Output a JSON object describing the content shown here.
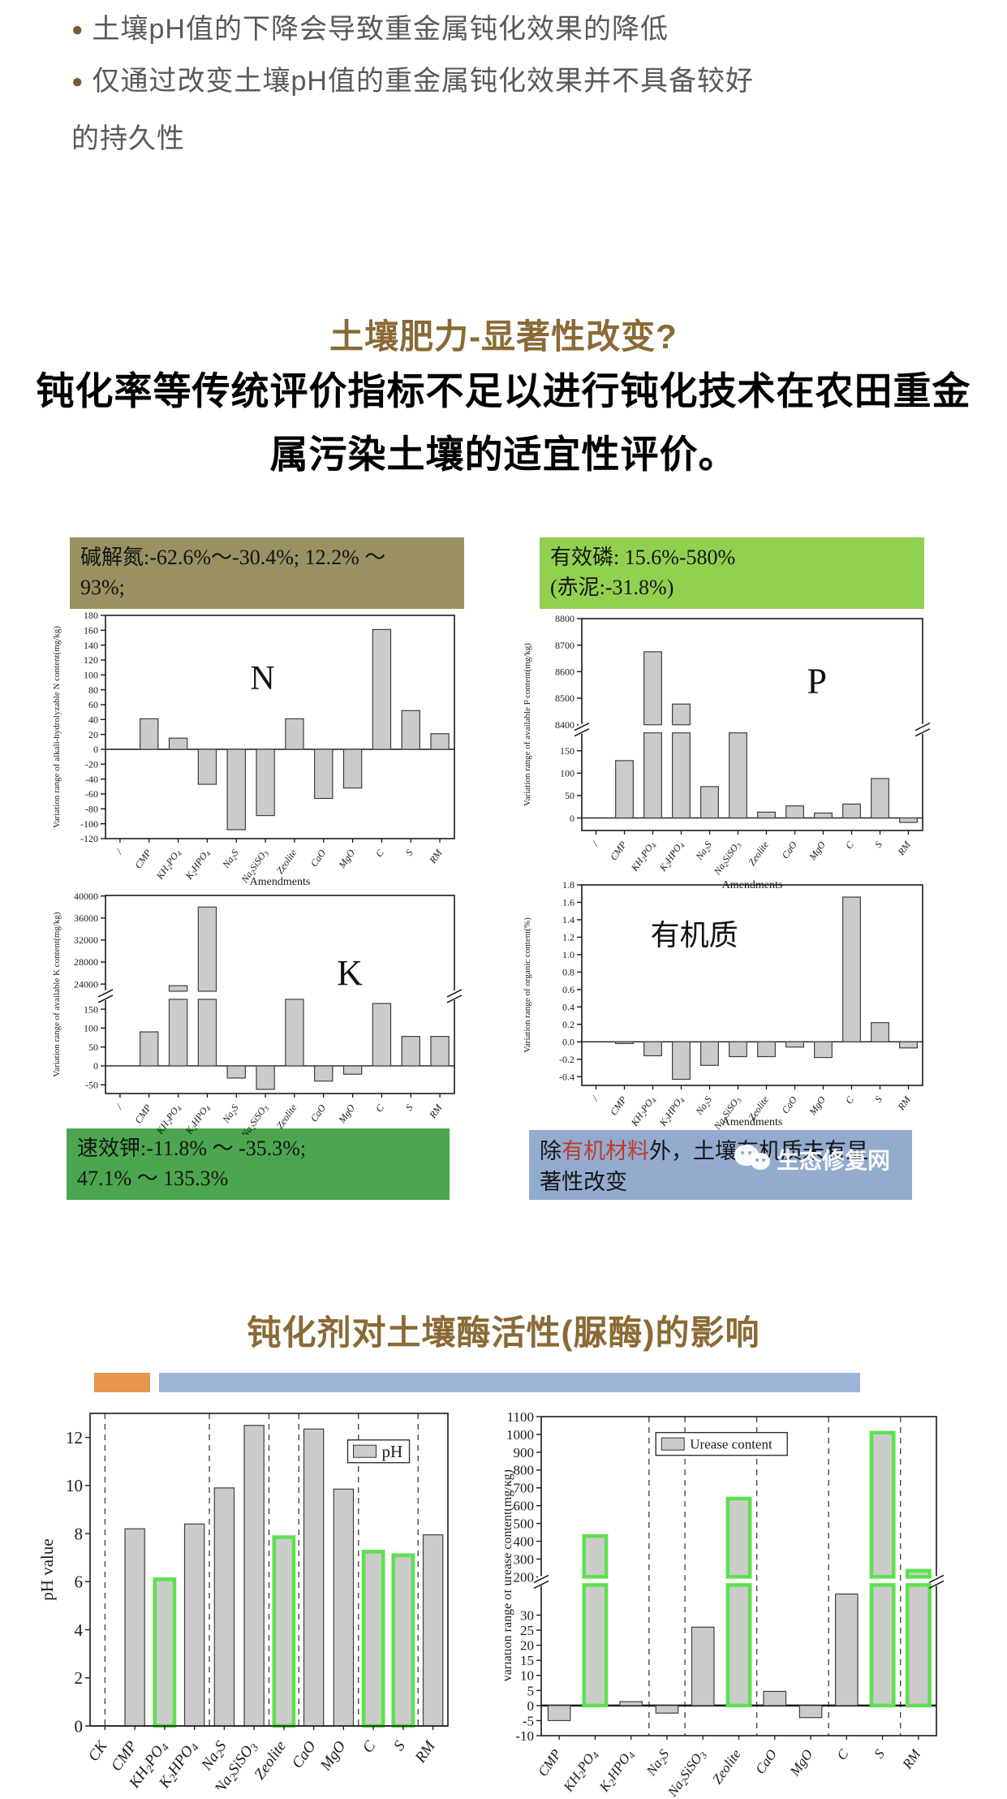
{
  "bullets": {
    "item1": "土壤pH值的下降会导致重金属钝化效果的降低",
    "item2_line1": "仅通过改变土壤pH值的重金属钝化效果并不具备较好",
    "item2_line2": "的持久性"
  },
  "headings": {
    "fertility": "土壤肥力-显著性改变?",
    "enzyme": "钝化剂对土壤酶活性(脲酶)的影响"
  },
  "paragraph": {
    "line1": "钝化率等传统评价指标不足以进行钝化技术在农田重金",
    "line2": "属污染土壤的适宜性评价。"
  },
  "boxes": {
    "nitrogen": {
      "line1": "碱解氮:-62.6%～-30.4%; 12.2% ～",
      "line2": "93%;",
      "bg": "#9a9062"
    },
    "phosphorus": {
      "line1": "有效磷: 15.6%-580%",
      "line2": "(赤泥:-31.8%)",
      "bg": "#92d050"
    },
    "potassium": {
      "line1": "速效钾:-11.8% ～ -35.3%;",
      "line2": "47.1% ～ 135.3%",
      "bg": "#4ca64f"
    },
    "organic": {
      "pre": "除",
      "red": "有机材料",
      "post": "外，土壤有机质未有显",
      "line2": "著性改变",
      "bg": "#93abcf",
      "red_color": "#c03a2b"
    }
  },
  "watermark": {
    "text": "生态修复网"
  },
  "decor": {
    "orange": "#e8954d",
    "blue": "#9db4d8"
  },
  "chart_style": {
    "bar_fill": "#cbcbcb",
    "bar_stroke": "#3f3f3f",
    "highlight": "#5ce14e",
    "text": "#1a1a1a"
  },
  "chart_data": [
    {
      "id": "n",
      "type": "bar",
      "title": "N",
      "ylabel": "Variation range of alkali-hydrolyzable N content(mg/kg)",
      "xlabel": "Amendments",
      "categories": [
        "/",
        "CMP",
        "KH~2~PO~4~",
        "K~2~HPO~4~",
        "Na~2~S",
        "Na~2~SiSO~3~",
        "Zeolite",
        "CaO",
        "MgO",
        "C",
        "S",
        "RM"
      ],
      "values": [
        null,
        41,
        15,
        -47,
        -108,
        -89,
        41,
        -66,
        -52,
        161,
        52,
        21
      ],
      "axis": {
        "min": -120,
        "max": 180,
        "start": -120,
        "step": 20,
        "decimals": 0
      },
      "grid": false,
      "legend_position": "none"
    },
    {
      "id": "p",
      "type": "bar",
      "title": "P",
      "ylabel": "Variation range of available P content(mg/kg)",
      "xlabel": "Amendments",
      "categories": [
        "/",
        "CMP",
        "KH~2~PO~4~",
        "K~2~HPO~4~",
        "Na~2~S",
        "Na~2~SiSO~3~",
        "Zeolite",
        "CaO",
        "MgO",
        "C",
        "S",
        "RM"
      ],
      "values": [
        null,
        128,
        8675,
        8478,
        70,
        340,
        13,
        27,
        11,
        31,
        88,
        -10
      ],
      "broken": {
        "frac": 0.52,
        "lower": {
          "min": -28,
          "max": 190,
          "ticks": [
            0,
            50,
            100,
            150
          ]
        },
        "upper": {
          "min": 8400,
          "max": 8800,
          "ticks": [
            8400,
            8500,
            8600,
            8700,
            8800
          ]
        }
      },
      "grid": false,
      "legend_position": "none"
    },
    {
      "id": "k",
      "type": "bar",
      "title": "K",
      "ylabel": "Variation range of available K content(mg/kg)",
      "categories": [
        "/",
        "CMP",
        "KH~2~PO~4~",
        "K~2~HPO~4~",
        "Na~2~S",
        "Na~2~SiSO~3~",
        "Zeolite",
        "CaO",
        "MgO",
        "C",
        "S",
        "RM"
      ],
      "values": [
        null,
        90,
        23700,
        38000,
        -32,
        -62,
        220,
        -40,
        -22,
        165,
        78,
        78
      ],
      "broken": {
        "frac": 0.504,
        "lower": {
          "min": -73,
          "max": 176,
          "ticks": [
            -50,
            0,
            50,
            100,
            150
          ]
        },
        "upper": {
          "min": 22700,
          "max": 40100,
          "ticks": [
            24000,
            28000,
            32000,
            36000,
            40000
          ]
        }
      },
      "grid": false,
      "legend_position": "none"
    },
    {
      "id": "om",
      "type": "bar",
      "title": "有机质",
      "ylabel": "Variation range of organic content(%)",
      "xlabel": "Amendments",
      "categories": [
        "/",
        "CMP",
        "KH~2~PO~4~",
        "K~2~HPO~4~",
        "Na~2~S",
        "Na~2~SiSO~3~",
        "Zeolite",
        "CaO",
        "MgO",
        "C",
        "S",
        "RM"
      ],
      "values": [
        null,
        -0.02,
        -0.16,
        -0.43,
        -0.27,
        -0.17,
        -0.17,
        -0.06,
        -0.18,
        1.66,
        0.22,
        -0.07
      ],
      "axis": {
        "min": -0.5,
        "max": 1.8,
        "start": -0.4,
        "step": 0.2,
        "decimals": 1
      },
      "grid": false,
      "legend_position": "none"
    },
    {
      "id": "ph",
      "type": "bar",
      "title": "",
      "ylabel": "pH value",
      "legend": {
        "label": "pH"
      },
      "categories": [
        "CK",
        "CMP",
        "KH~2~PO~4~",
        "K~2~HPO~4~",
        "Na~2~S",
        "Na~2~SiSO~3~",
        "Zeolite",
        "CaO",
        "MgO",
        "C",
        "S",
        "RM"
      ],
      "values": [
        null,
        8.2,
        6.1,
        8.4,
        9.9,
        12.5,
        7.85,
        12.35,
        9.85,
        7.25,
        7.1,
        7.95
      ],
      "highlights": [
        2,
        6,
        9,
        10
      ],
      "vlines": [
        0,
        3.5,
        5.5,
        6.5,
        8.5,
        10.5
      ],
      "axis": {
        "min": 0,
        "max": 13,
        "start": 0,
        "step": 2,
        "decimals": 0
      },
      "grid": false,
      "legend_position": "inside-top-right"
    },
    {
      "id": "urease",
      "type": "bar",
      "title": "",
      "ylabel": "Variation range of urease content(mg/kg)",
      "legend": {
        "label": "Urease content"
      },
      "categories": [
        "CMP",
        "KH~2~PO~4~",
        "K~2~HPO~4~",
        "Na~2~S",
        "Na~2~SiSO~3~",
        "Zeolite",
        "CaO",
        "MgO",
        "C",
        "S",
        "RM"
      ],
      "values": [
        -5,
        430,
        1.3,
        -2.5,
        26,
        640,
        4.7,
        -4,
        37,
        1010,
        235
      ],
      "highlights": [
        1,
        5,
        9,
        10
      ],
      "vlines": [
        2.5,
        3.5,
        5.5,
        7.5,
        9.5
      ],
      "zero_bold": true,
      "broken": {
        "frac": 0.515,
        "lower": {
          "min": -10,
          "max": 40,
          "ticks": [
            -10,
            -5,
            0,
            5,
            10,
            15,
            20,
            25,
            30
          ]
        },
        "upper": {
          "min": 200,
          "max": 1100,
          "ticks": [
            200,
            300,
            400,
            500,
            600,
            700,
            800,
            900,
            1000,
            1100
          ]
        }
      },
      "grid": false,
      "legend_position": "inside-top-center"
    }
  ]
}
